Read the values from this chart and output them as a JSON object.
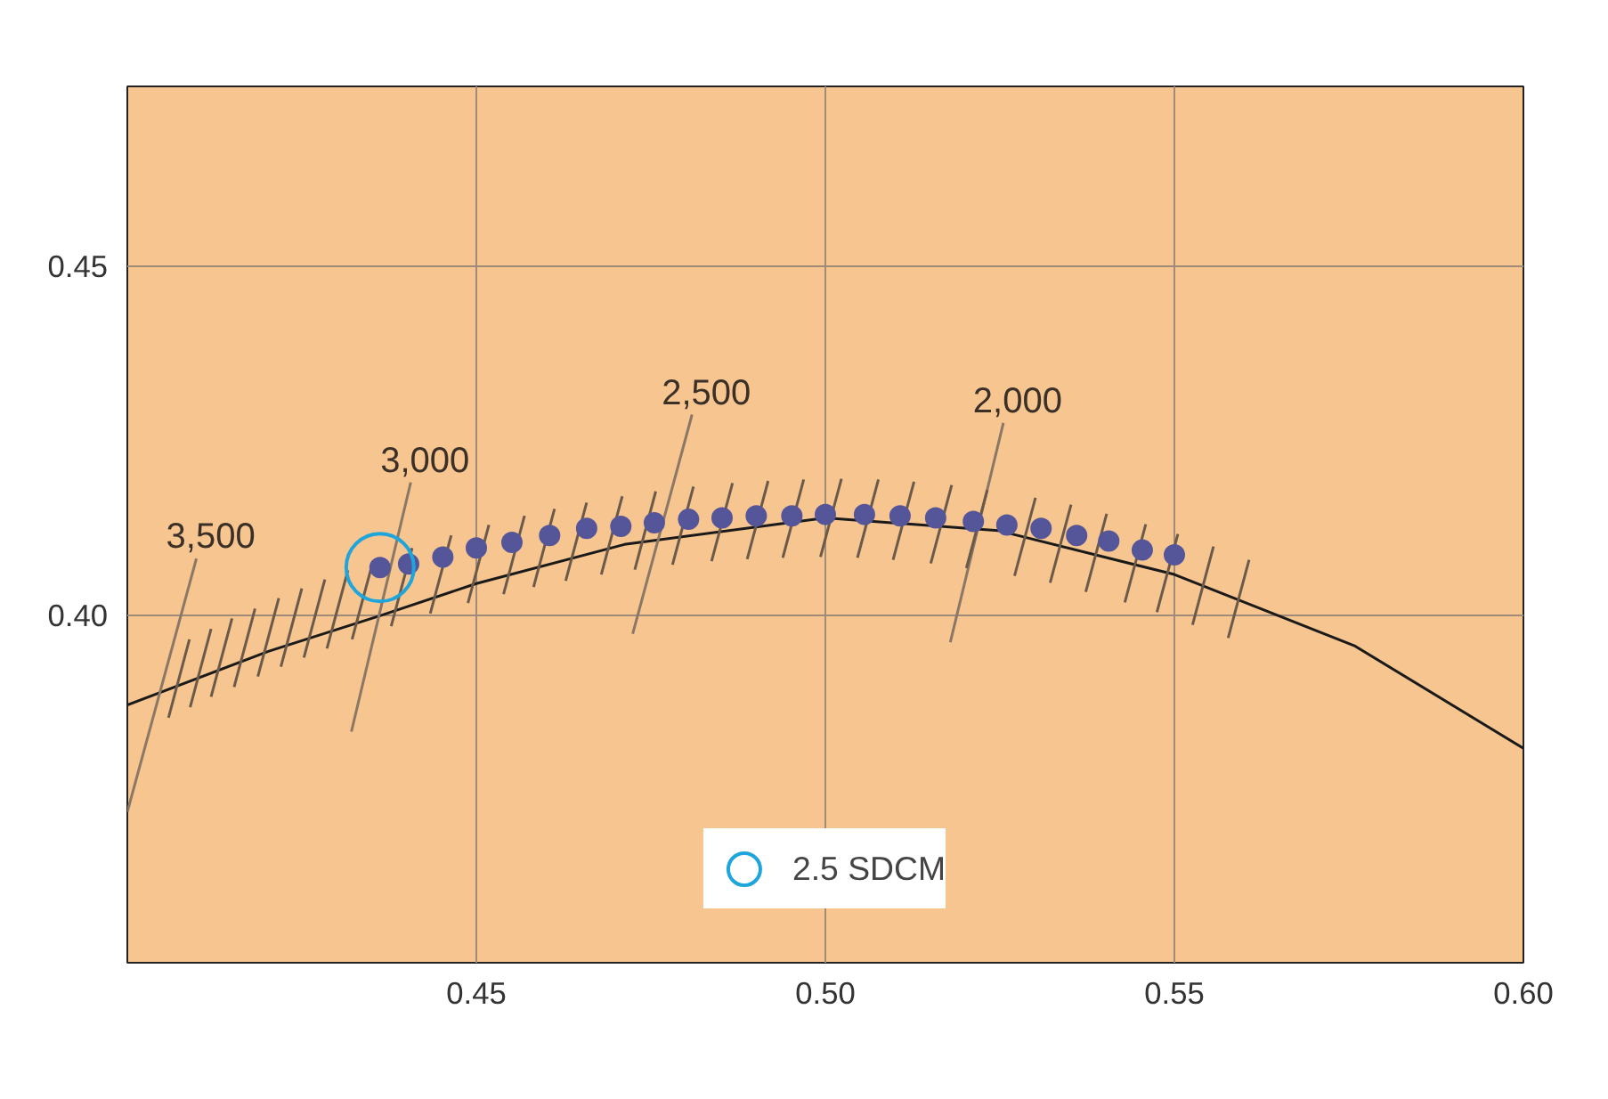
{
  "chart_data": {
    "type": "scatter",
    "xlim": [
      0.4,
      0.6
    ],
    "ylim": [
      0.3503,
      0.4758
    ],
    "xticks": [
      {
        "value": 0.45,
        "label": "0.45"
      },
      {
        "value": 0.5,
        "label": "0.50"
      },
      {
        "value": 0.55,
        "label": "0.55"
      },
      {
        "value": 0.6,
        "label": "0.60"
      }
    ],
    "yticks": [
      {
        "value": 0.4,
        "label": "0.40"
      },
      {
        "value": 0.45,
        "label": "0.45"
      }
    ],
    "grid": true,
    "legend": "bottom",
    "annotations": [
      {
        "text": "3,500",
        "x": 0.4099,
        "y": 0.4082
      },
      {
        "text": "3,000",
        "x": 0.4406,
        "y": 0.4191
      },
      {
        "text": "2,500",
        "x": 0.4809,
        "y": 0.4288
      },
      {
        "text": "2,000",
        "x": 0.5255,
        "y": 0.4276
      }
    ],
    "series": [
      {
        "type": "line",
        "color": "#1a1a1a",
        "x": [
          0.4,
          0.4202,
          0.4362,
          0.45,
          0.4712,
          0.5,
          0.5247,
          0.55,
          0.5758,
          0.6
        ],
        "values": [
          0.3872,
          0.3949,
          0.4,
          0.4046,
          0.4102,
          0.414,
          0.4122,
          0.4059,
          0.3957,
          0.381
        ]
      },
      {
        "type": "line",
        "color": "#8a7766",
        "x": [
          0.4,
          0.4099
        ],
        "values": [
          0.3719,
          0.4082
        ]
      },
      {
        "type": "line",
        "color": "#8a7766",
        "x": [
          0.4321,
          0.4406
        ],
        "values": [
          0.3834,
          0.4191
        ]
      },
      {
        "type": "line",
        "color": "#8a7766",
        "x": [
          0.4724,
          0.4809
        ],
        "values": [
          0.3974,
          0.4288
        ]
      },
      {
        "type": "line",
        "color": "#8a7766",
        "x": [
          0.5179,
          0.5255
        ],
        "values": [
          0.3962,
          0.4276
        ]
      },
      {
        "type": "line",
        "color": "#6b5a4a",
        "x": [
          0.4059,
          0.4089
        ],
        "values": [
          0.3854,
          0.3966
        ]
      },
      {
        "type": "line",
        "color": "#6b5a4a",
        "x": [
          0.409,
          0.412
        ],
        "values": [
          0.3869,
          0.3981
        ]
      },
      {
        "type": "line",
        "color": "#6b5a4a",
        "x": [
          0.412,
          0.415
        ],
        "values": [
          0.3884,
          0.3996
        ]
      },
      {
        "type": "line",
        "color": "#6b5a4a",
        "x": [
          0.4153,
          0.4183
        ],
        "values": [
          0.3898,
          0.401
        ]
      },
      {
        "type": "line",
        "color": "#6b5a4a",
        "x": [
          0.4187,
          0.4217
        ],
        "values": [
          0.3913,
          0.4025
        ]
      },
      {
        "type": "line",
        "color": "#6b5a4a",
        "x": [
          0.422,
          0.425
        ],
        "values": [
          0.3927,
          0.4039
        ]
      },
      {
        "type": "line",
        "color": "#6b5a4a",
        "x": [
          0.4253,
          0.4283
        ],
        "values": [
          0.394,
          0.4052
        ]
      },
      {
        "type": "line",
        "color": "#6b5a4a",
        "x": [
          0.4286,
          0.4316
        ],
        "values": [
          0.3953,
          0.4065
        ]
      },
      {
        "type": "line",
        "color": "#6b5a4a",
        "x": [
          0.4322,
          0.4352
        ],
        "values": [
          0.3966,
          0.4078
        ]
      },
      {
        "type": "line",
        "color": "#6b5a4a",
        "x": [
          0.4378,
          0.4408
        ],
        "values": [
          0.3985,
          0.4097
        ]
      },
      {
        "type": "line",
        "color": "#6b5a4a",
        "x": [
          0.4434,
          0.4464
        ],
        "values": [
          0.4003,
          0.4115
        ]
      },
      {
        "type": "line",
        "color": "#6b5a4a",
        "x": [
          0.4488,
          0.4518
        ],
        "values": [
          0.4018,
          0.413
        ]
      },
      {
        "type": "line",
        "color": "#6b5a4a",
        "x": [
          0.4539,
          0.4569
        ],
        "values": [
          0.4031,
          0.4143
        ]
      },
      {
        "type": "line",
        "color": "#6b5a4a",
        "x": [
          0.4582,
          0.4612
        ],
        "values": [
          0.4041,
          0.4153
        ]
      },
      {
        "type": "line",
        "color": "#6b5a4a",
        "x": [
          0.4628,
          0.4658
        ],
        "values": [
          0.405,
          0.4162
        ]
      },
      {
        "type": "line",
        "color": "#6b5a4a",
        "x": [
          0.4679,
          0.4709
        ],
        "values": [
          0.4059,
          0.4171
        ]
      },
      {
        "type": "line",
        "color": "#6b5a4a",
        "x": [
          0.4727,
          0.4757
        ],
        "values": [
          0.4066,
          0.4178
        ]
      },
      {
        "type": "line",
        "color": "#6b5a4a",
        "x": [
          0.4781,
          0.4811
        ],
        "values": [
          0.4073,
          0.4185
        ]
      },
      {
        "type": "line",
        "color": "#6b5a4a",
        "x": [
          0.4837,
          0.4867
        ],
        "values": [
          0.4078,
          0.419
        ]
      },
      {
        "type": "line",
        "color": "#6b5a4a",
        "x": [
          0.4888,
          0.4918
        ],
        "values": [
          0.4081,
          0.4193
        ]
      },
      {
        "type": "line",
        "color": "#6b5a4a",
        "x": [
          0.4939,
          0.4969
        ],
        "values": [
          0.4083,
          0.4195
        ]
      },
      {
        "type": "line",
        "color": "#6b5a4a",
        "x": [
          0.4993,
          0.5023
        ],
        "values": [
          0.4084,
          0.4196
        ]
      },
      {
        "type": "line",
        "color": "#6b5a4a",
        "x": [
          0.5046,
          0.5076
        ],
        "values": [
          0.4083,
          0.4195
        ]
      },
      {
        "type": "line",
        "color": "#6b5a4a",
        "x": [
          0.5097,
          0.5127
        ],
        "values": [
          0.408,
          0.4192
        ]
      },
      {
        "type": "line",
        "color": "#6b5a4a",
        "x": [
          0.5151,
          0.5181
        ],
        "values": [
          0.4075,
          0.4187
        ]
      },
      {
        "type": "line",
        "color": "#6b5a4a",
        "x": [
          0.5202,
          0.5232
        ],
        "values": [
          0.4068,
          0.418
        ]
      },
      {
        "type": "line",
        "color": "#6b5a4a",
        "x": [
          0.5271,
          0.5301
        ],
        "values": [
          0.4057,
          0.4169
        ]
      },
      {
        "type": "line",
        "color": "#6b5a4a",
        "x": [
          0.5322,
          0.5352
        ],
        "values": [
          0.4047,
          0.4159
        ]
      },
      {
        "type": "line",
        "color": "#6b5a4a",
        "x": [
          0.5373,
          0.5403
        ],
        "values": [
          0.4034,
          0.4146
        ]
      },
      {
        "type": "line",
        "color": "#6b5a4a",
        "x": [
          0.5429,
          0.5459
        ],
        "values": [
          0.4019,
          0.4131
        ]
      },
      {
        "type": "line",
        "color": "#6b5a4a",
        "x": [
          0.5475,
          0.5505
        ],
        "values": [
          0.4005,
          0.4117
        ]
      },
      {
        "type": "line",
        "color": "#6b5a4a",
        "x": [
          0.5526,
          0.5556
        ],
        "values": [
          0.3987,
          0.4099
        ]
      },
      {
        "type": "line",
        "color": "#6b5a4a",
        "x": [
          0.5577,
          0.5607
        ],
        "values": [
          0.3968,
          0.408
        ]
      },
      {
        "color": "#55559a",
        "marker": "circle",
        "x": [
          0.4362,
          0.4403,
          0.4452,
          0.45,
          0.4551,
          0.4605,
          0.4658,
          0.4707,
          0.4755,
          0.4804,
          0.4852,
          0.4901,
          0.4952,
          0.5,
          0.5056,
          0.5107,
          0.5158,
          0.5212,
          0.526,
          0.5309,
          0.536,
          0.5406,
          0.5454,
          0.55
        ],
        "values": [
          0.4069,
          0.4074,
          0.4084,
          0.4097,
          0.4105,
          0.4115,
          0.4125,
          0.4128,
          0.4133,
          0.4138,
          0.414,
          0.4143,
          0.4143,
          0.4145,
          0.4145,
          0.4143,
          0.414,
          0.4135,
          0.413,
          0.4125,
          0.4115,
          0.4107,
          0.4094,
          0.4087
        ]
      },
      {
        "type": "bubble",
        "name": "2.5 SDCM",
        "color": "#1ea6dc",
        "x": [
          0.4362
        ],
        "values": [
          0.4069
        ],
        "sizes": [
          1
        ]
      }
    ]
  }
}
